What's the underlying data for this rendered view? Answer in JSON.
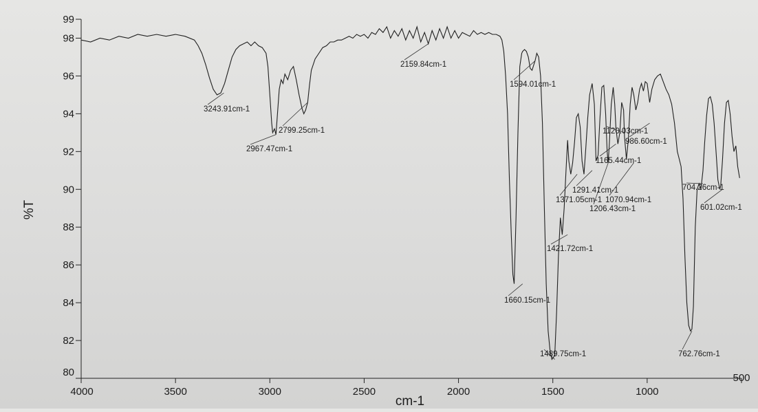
{
  "chart_data": {
    "type": "line",
    "xlabel": "cm-1",
    "ylabel": "%T",
    "x_axis": {
      "range": [
        4000,
        500
      ],
      "reversed": true,
      "ticks": [
        4000,
        3500,
        3000,
        2500,
        2000,
        1500,
        1000,
        500
      ]
    },
    "y_axis": {
      "range": [
        80,
        99
      ],
      "ticks": [
        80,
        82,
        84,
        86,
        88,
        90,
        92,
        94,
        96,
        98,
        99
      ]
    },
    "grid": false,
    "series": [
      {
        "values": [
          [
            4000,
            97.9
          ],
          [
            3950,
            97.8
          ],
          [
            3900,
            98.0
          ],
          [
            3850,
            97.9
          ],
          [
            3800,
            98.1
          ],
          [
            3750,
            98.0
          ],
          [
            3700,
            98.2
          ],
          [
            3650,
            98.1
          ],
          [
            3600,
            98.2
          ],
          [
            3550,
            98.1
          ],
          [
            3500,
            98.2
          ],
          [
            3450,
            98.1
          ],
          [
            3400,
            97.9
          ],
          [
            3380,
            97.6
          ],
          [
            3360,
            97.2
          ],
          [
            3340,
            96.6
          ],
          [
            3320,
            95.9
          ],
          [
            3300,
            95.3
          ],
          [
            3280,
            95.0
          ],
          [
            3260,
            95.1
          ],
          [
            3240,
            95.6
          ],
          [
            3220,
            96.3
          ],
          [
            3200,
            97.0
          ],
          [
            3180,
            97.4
          ],
          [
            3160,
            97.6
          ],
          [
            3140,
            97.7
          ],
          [
            3120,
            97.8
          ],
          [
            3100,
            97.6
          ],
          [
            3080,
            97.8
          ],
          [
            3060,
            97.6
          ],
          [
            3040,
            97.5
          ],
          [
            3020,
            97.2
          ],
          [
            3010,
            96.5
          ],
          [
            3000,
            95.0
          ],
          [
            2990,
            93.5
          ],
          [
            2985,
            93.0
          ],
          [
            2975,
            93.2
          ],
          [
            2967.47,
            92.9
          ],
          [
            2958,
            94.2
          ],
          [
            2950,
            95.3
          ],
          [
            2940,
            95.8
          ],
          [
            2930,
            95.6
          ],
          [
            2920,
            96.1
          ],
          [
            2905,
            95.8
          ],
          [
            2890,
            96.3
          ],
          [
            2875,
            96.5
          ],
          [
            2860,
            95.8
          ],
          [
            2845,
            95.0
          ],
          [
            2830,
            94.3
          ],
          [
            2820,
            94.0
          ],
          [
            2810,
            94.2
          ],
          [
            2799.25,
            94.6
          ],
          [
            2790,
            95.5
          ],
          [
            2780,
            96.3
          ],
          [
            2760,
            96.9
          ],
          [
            2740,
            97.2
          ],
          [
            2720,
            97.5
          ],
          [
            2700,
            97.6
          ],
          [
            2680,
            97.8
          ],
          [
            2660,
            97.8
          ],
          [
            2640,
            97.9
          ],
          [
            2620,
            97.9
          ],
          [
            2600,
            98.0
          ],
          [
            2580,
            98.1
          ],
          [
            2560,
            98.0
          ],
          [
            2540,
            98.2
          ],
          [
            2520,
            98.1
          ],
          [
            2500,
            98.2
          ],
          [
            2480,
            98.0
          ],
          [
            2460,
            98.3
          ],
          [
            2440,
            98.2
          ],
          [
            2420,
            98.5
          ],
          [
            2400,
            98.3
          ],
          [
            2380,
            98.6
          ],
          [
            2360,
            98.0
          ],
          [
            2340,
            98.4
          ],
          [
            2320,
            98.1
          ],
          [
            2300,
            98.5
          ],
          [
            2280,
            97.9
          ],
          [
            2260,
            98.4
          ],
          [
            2240,
            98.0
          ],
          [
            2220,
            98.6
          ],
          [
            2200,
            97.8
          ],
          [
            2180,
            98.3
          ],
          [
            2159.84,
            97.7
          ],
          [
            2140,
            98.4
          ],
          [
            2120,
            97.9
          ],
          [
            2100,
            98.5
          ],
          [
            2080,
            98.0
          ],
          [
            2060,
            98.6
          ],
          [
            2040,
            98.0
          ],
          [
            2020,
            98.4
          ],
          [
            2000,
            98.0
          ],
          [
            1980,
            98.3
          ],
          [
            1960,
            98.2
          ],
          [
            1940,
            98.1
          ],
          [
            1920,
            98.4
          ],
          [
            1900,
            98.2
          ],
          [
            1880,
            98.3
          ],
          [
            1860,
            98.2
          ],
          [
            1840,
            98.3
          ],
          [
            1820,
            98.2
          ],
          [
            1800,
            98.2
          ],
          [
            1780,
            98.1
          ],
          [
            1770,
            97.9
          ],
          [
            1760,
            97.3
          ],
          [
            1750,
            96.0
          ],
          [
            1740,
            94.0
          ],
          [
            1730,
            90.5
          ],
          [
            1720,
            87.5
          ],
          [
            1712,
            85.5
          ],
          [
            1705,
            85.0
          ],
          [
            1695,
            88.5
          ],
          [
            1685,
            93.0
          ],
          [
            1675,
            96.5
          ],
          [
            1665,
            97.2
          ],
          [
            1660.15,
            97.3
          ],
          [
            1650,
            97.4
          ],
          [
            1640,
            97.3
          ],
          [
            1630,
            97.0
          ],
          [
            1620,
            96.4
          ],
          [
            1610,
            96.3
          ],
          [
            1594.01,
            96.8
          ],
          [
            1585,
            97.2
          ],
          [
            1575,
            97.0
          ],
          [
            1565,
            96.0
          ],
          [
            1555,
            93.5
          ],
          [
            1545,
            89.0
          ],
          [
            1535,
            85.0
          ],
          [
            1525,
            82.5
          ],
          [
            1515,
            81.5
          ],
          [
            1505,
            81.0
          ],
          [
            1489.75,
            81.2
          ],
          [
            1480,
            83.5
          ],
          [
            1470,
            86.5
          ],
          [
            1460,
            88.5
          ],
          [
            1450,
            87.6
          ],
          [
            1440,
            89.0
          ],
          [
            1430,
            91.0
          ],
          [
            1421.72,
            92.6
          ],
          [
            1415,
            91.5
          ],
          [
            1405,
            90.8
          ],
          [
            1395,
            91.4
          ],
          [
            1385,
            92.5
          ],
          [
            1375,
            93.8
          ],
          [
            1365,
            94.0
          ],
          [
            1355,
            93.3
          ],
          [
            1345,
            91.5
          ],
          [
            1335,
            90.8
          ],
          [
            1325,
            92.2
          ],
          [
            1315,
            93.8
          ],
          [
            1305,
            95.0
          ],
          [
            1291.41,
            95.6
          ],
          [
            1280,
            94.5
          ],
          [
            1271.05,
            91.5
          ],
          [
            1260,
            91.8
          ],
          [
            1250,
            93.8
          ],
          [
            1240,
            95.4
          ],
          [
            1230,
            95.5
          ],
          [
            1220,
            94.0
          ],
          [
            1212,
            92.0
          ],
          [
            1206.43,
            91.4
          ],
          [
            1200,
            92.5
          ],
          [
            1190,
            94.5
          ],
          [
            1180,
            95.4
          ],
          [
            1172,
            94.5
          ],
          [
            1165.44,
            93.2
          ],
          [
            1155,
            92.4
          ],
          [
            1145,
            93.0
          ],
          [
            1135,
            94.6
          ],
          [
            1125,
            94.2
          ],
          [
            1120.03,
            92.8
          ],
          [
            1110,
            91.6
          ],
          [
            1100,
            92.6
          ],
          [
            1090,
            94.5
          ],
          [
            1080,
            95.4
          ],
          [
            1070.94,
            95.0
          ],
          [
            1060,
            94.2
          ],
          [
            1050,
            94.6
          ],
          [
            1040,
            95.3
          ],
          [
            1030,
            95.6
          ],
          [
            1020,
            95.2
          ],
          [
            1010,
            95.7
          ],
          [
            1000,
            95.6
          ],
          [
            986.6,
            94.6
          ],
          [
            975,
            95.3
          ],
          [
            960,
            95.8
          ],
          [
            945,
            96.0
          ],
          [
            930,
            96.1
          ],
          [
            915,
            95.7
          ],
          [
            900,
            95.3
          ],
          [
            885,
            95.0
          ],
          [
            870,
            94.5
          ],
          [
            855,
            93.5
          ],
          [
            840,
            92.0
          ],
          [
            830,
            91.6
          ],
          [
            820,
            91.2
          ],
          [
            810,
            89.5
          ],
          [
            800,
            86.5
          ],
          [
            790,
            84.0
          ],
          [
            780,
            82.8
          ],
          [
            770,
            82.5
          ],
          [
            762.76,
            82.6
          ],
          [
            755,
            83.8
          ],
          [
            745,
            88.0
          ],
          [
            735,
            90.0
          ],
          [
            725,
            90.3
          ],
          [
            715,
            90.0
          ],
          [
            704.26,
            91.0
          ],
          [
            695,
            92.5
          ],
          [
            685,
            93.9
          ],
          [
            675,
            94.8
          ],
          [
            665,
            94.9
          ],
          [
            655,
            94.5
          ],
          [
            645,
            93.5
          ],
          [
            635,
            92.0
          ],
          [
            625,
            90.5
          ],
          [
            615,
            90.0
          ],
          [
            610,
            90.2
          ],
          [
            601.02,
            91.5
          ],
          [
            590,
            93.5
          ],
          [
            580,
            94.6
          ],
          [
            570,
            94.7
          ],
          [
            560,
            94.0
          ],
          [
            550,
            92.8
          ],
          [
            540,
            92.0
          ],
          [
            530,
            92.3
          ],
          [
            520,
            91.2
          ],
          [
            510,
            90.6
          ]
        ]
      }
    ],
    "annotations": [
      {
        "label": "3243.91cm-1",
        "x": 3243.91,
        "y": 95.1
      },
      {
        "label": "2967.47cm-1",
        "x": 2967.47,
        "y": 92.9
      },
      {
        "label": "2799.25cm-1",
        "x": 2799.25,
        "y": 94.6
      },
      {
        "label": "2159.84cm-1",
        "x": 2159.84,
        "y": 97.7
      },
      {
        "label": "1594.01cm-1",
        "x": 1594.01,
        "y": 96.8
      },
      {
        "label": "1660.15cm-1",
        "x": 1660.15,
        "y": 85.0
      },
      {
        "label": "1489.75cm-1",
        "x": 1489.75,
        "y": 81.0
      },
      {
        "label": "1421.72cm-1",
        "x": 1421.72,
        "y": 87.6
      },
      {
        "label": "1291.41cm-1",
        "x": 1291.41,
        "y": 91.0
      },
      {
        "label": "1371.05cm-1",
        "x": 1371.05,
        "y": 90.8
      },
      {
        "label": "1070.94cm-1",
        "x": 1070.94,
        "y": 91.4
      },
      {
        "label": "1206.43cm-1",
        "x": 1206.43,
        "y": 91.4
      },
      {
        "label": "1120.03cm-1",
        "x": 1120.03,
        "y": 93.0
      },
      {
        "label": "986.60cm-1",
        "x": 986.6,
        "y": 93.5
      },
      {
        "label": "1165.44cm-1",
        "x": 1165.44,
        "y": 92.4
      },
      {
        "label": "704.26cm-1",
        "x": 704.26,
        "y": 90.3
      },
      {
        "label": "601.02cm-1",
        "x": 601.02,
        "y": 90.0
      },
      {
        "label": "762.76cm-1",
        "x": 762.76,
        "y": 82.5
      }
    ],
    "colors": {
      "line": "#1f1f1f",
      "axis": "#222222"
    }
  }
}
